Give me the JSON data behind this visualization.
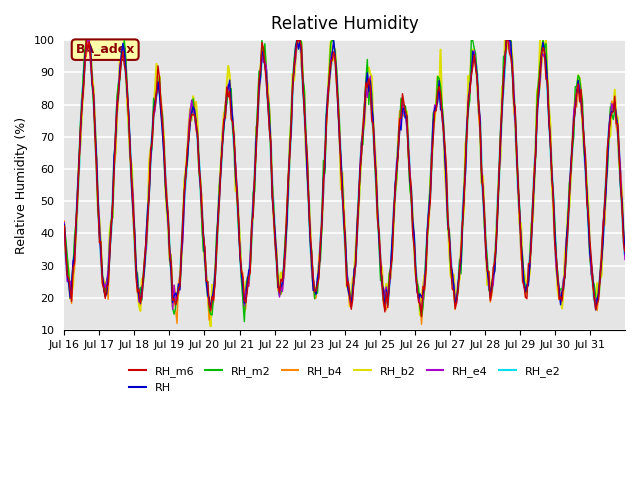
{
  "title": "Relative Humidity",
  "ylabel": "Relative Humidity (%)",
  "ylim": [
    10,
    100
  ],
  "yticks": [
    10,
    20,
    30,
    40,
    50,
    60,
    70,
    80,
    90,
    100
  ],
  "annotation": "BA_adex",
  "series_order": [
    "RH_e2",
    "RH_b2",
    "RH_b4",
    "RH_m2",
    "RH_e4",
    "RH",
    "RH_m6"
  ],
  "series": {
    "RH_m6": {
      "color": "#cc0000",
      "zorder": 4,
      "lw": 1.0
    },
    "RH": {
      "color": "#0000cc",
      "zorder": 4,
      "lw": 1.0
    },
    "RH_m2": {
      "color": "#00bb00",
      "zorder": 4,
      "lw": 1.0
    },
    "RH_b4": {
      "color": "#ff8800",
      "zorder": 4,
      "lw": 1.0
    },
    "RH_b2": {
      "color": "#dddd00",
      "zorder": 3,
      "lw": 1.5
    },
    "RH_e4": {
      "color": "#aa00cc",
      "zorder": 4,
      "lw": 1.0
    },
    "RH_e2": {
      "color": "#00ddee",
      "zorder": 2,
      "lw": 1.8
    }
  },
  "legend_order": [
    "RH_m6",
    "RH",
    "RH_m2",
    "RH_b4",
    "RH_b2",
    "RH_e4",
    "RH_e2"
  ],
  "xtick_labels": [
    "Jul 16",
    "Jul 17",
    "Jul 18",
    "Jul 19",
    "Jul 20",
    "Jul 21",
    "Jul 22",
    "Jul 23",
    "Jul 24",
    "Jul 25",
    "Jul 26",
    "Jul 27",
    "Jul 28",
    "Jul 29",
    "Jul 30",
    "Jul 31"
  ],
  "bg_color": "#e5e5e5",
  "fig_color": "#ffffff"
}
